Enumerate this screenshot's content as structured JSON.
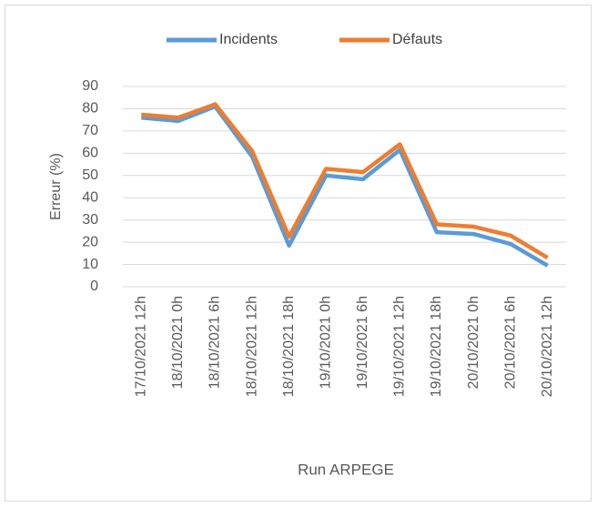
{
  "chart_data": {
    "type": "line",
    "categories": [
      "17/10/2021 12h",
      "18/10/2021 0h",
      "18/10/2021 6h",
      "18/10/2021 12h",
      "18/10/2021 18h",
      "19/10/2021 0h",
      "19/10/2021 6h",
      "19/10/2021 12h",
      "19/10/2021 18h",
      "20/10/2021 0h",
      "20/10/2021 6h",
      "20/10/2021 12h"
    ],
    "series": [
      {
        "name": "Incidents",
        "color": "#5b9bd5",
        "values": [
          76,
          74.5,
          81,
          58.5,
          18.5,
          50,
          48.3,
          61.5,
          24.5,
          23.7,
          19.2,
          9.5
        ]
      },
      {
        "name": "Défauts",
        "color": "#ed7d31",
        "values": [
          77.3,
          76,
          82,
          61,
          22.5,
          53,
          51.5,
          64,
          28,
          27,
          23,
          13
        ]
      }
    ],
    "ylabel": "Erreur (%)",
    "xlabel": "Run ARPEGE",
    "ylim": [
      0,
      90
    ],
    "yticks": [
      0,
      10,
      20,
      30,
      40,
      50,
      60,
      70,
      80,
      90
    ],
    "grid": true,
    "legend": "top"
  }
}
